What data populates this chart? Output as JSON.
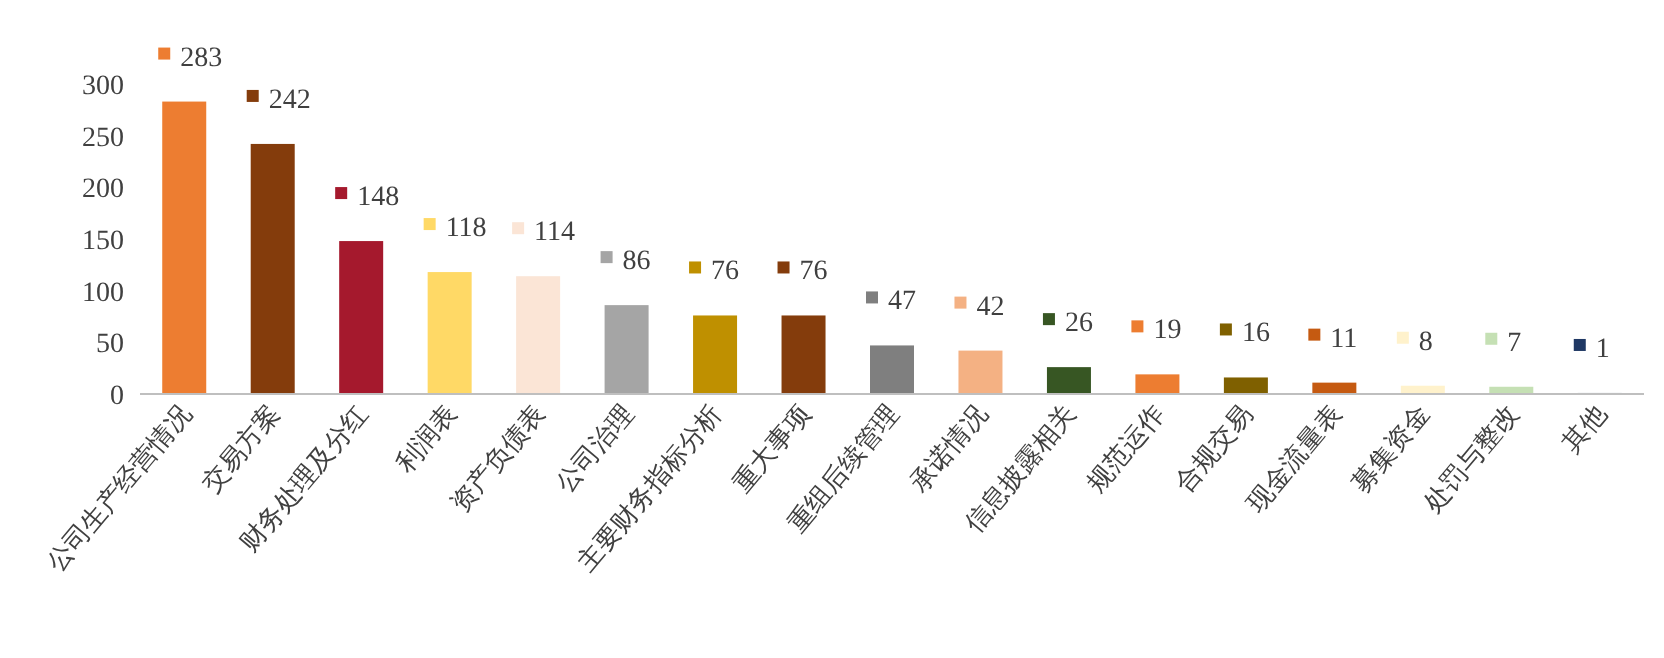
{
  "chart_data": {
    "type": "bar",
    "categories": [
      "公司生产经营情况",
      "交易方案",
      "财务处理及分红",
      "利润表",
      "资产负债表",
      "公司治理",
      "主要财务指标分析",
      "重大事项",
      "重组后续管理",
      "承诺情况",
      "信息披露相关",
      "规范运作",
      "合规交易",
      "现金流量表",
      "募集资金",
      "处罚与整改",
      "其他"
    ],
    "values": [
      283,
      242,
      148,
      118,
      114,
      86,
      76,
      76,
      47,
      42,
      26,
      19,
      16,
      11,
      8,
      7,
      1
    ],
    "colors": [
      "#ed7d31",
      "#843c0c",
      "#a5192d",
      "#ffd966",
      "#fbe5d6",
      "#a5a5a5",
      "#bf9000",
      "#843c0c",
      "#7f7f7f",
      "#f4b183",
      "#375623",
      "#ed7d31",
      "#7f6000",
      "#c55a11",
      "#fff2cc",
      "#c5e0b4",
      "#1f3864"
    ],
    "ylim": [
      0,
      300
    ],
    "yticks": [
      0,
      50,
      100,
      150,
      200,
      250,
      300
    ],
    "data_labels": true
  }
}
